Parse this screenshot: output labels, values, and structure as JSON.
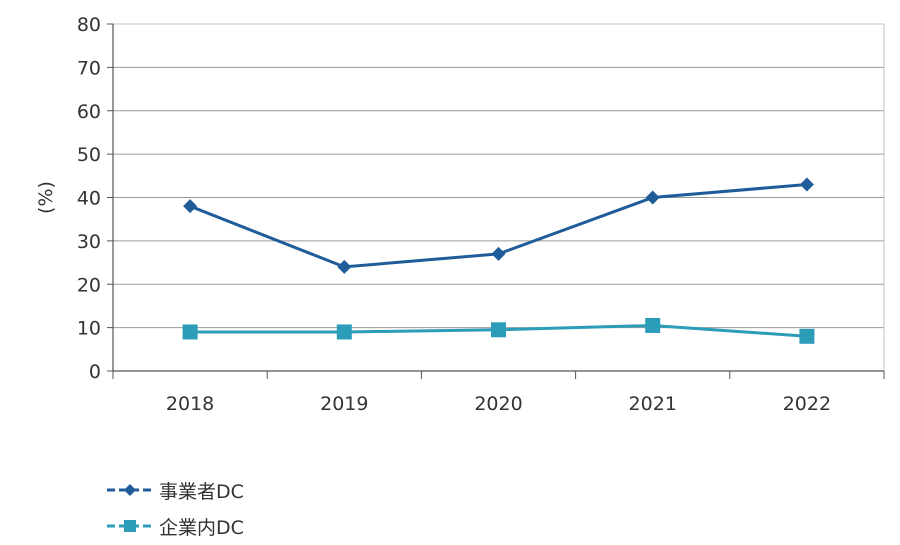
{
  "chart_data": {
    "type": "line",
    "categories": [
      "2018",
      "2019",
      "2020",
      "2021",
      "2022"
    ],
    "ylabel": "(%)",
    "ylim": [
      0,
      80
    ],
    "yticks": [
      0,
      10,
      20,
      30,
      40,
      50,
      60,
      70,
      80
    ],
    "grid": true,
    "legend_position": "bottom-left",
    "series": [
      {
        "name": "事業者DC",
        "values": [
          38,
          24,
          27,
          40,
          43
        ],
        "color": "#1f5c99",
        "marker": "diamond"
      },
      {
        "name": "企業内DC",
        "values": [
          9,
          9,
          9.5,
          10.5,
          8
        ],
        "color": "#2b9db8",
        "marker": "square"
      }
    ]
  }
}
